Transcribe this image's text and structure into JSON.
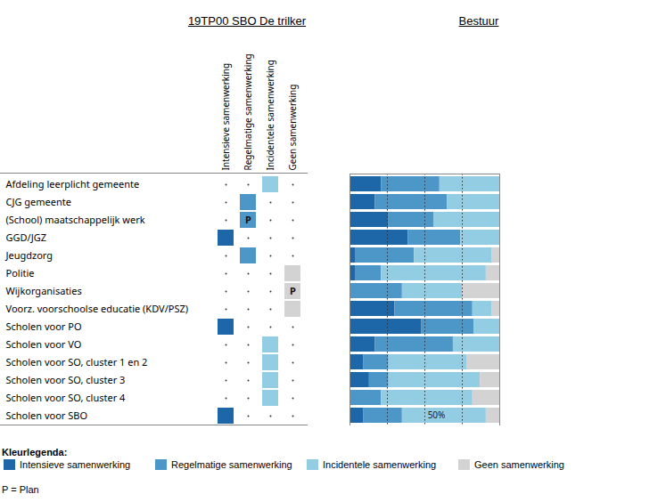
{
  "chart_data": [
    {
      "type": "matrix",
      "title": "19TP00 SBO De trilker",
      "columns": [
        "Intensieve samenwerking",
        "Regelmatige samenwerking",
        "Incidentele samenwerking",
        "Geen samenwerking"
      ],
      "categories": [
        "Afdeling leerplicht gemeente",
        "CJG gemeente",
        "(School) maatschappelijk werk",
        "GGD/JGZ",
        "Jeugdzorg",
        "Politie",
        "Wijkorganisaties",
        "Voorz. voorschoolse educatie (KDV/PSZ)",
        "Scholen voor PO",
        "Scholen voor VO",
        "Scholen voor SO, cluster 1 en 2",
        "Scholen voor SO, cluster 3",
        "Scholen voor SO, cluster 4",
        "Scholen voor SBO"
      ],
      "levels": [
        "Incidentele samenwerking",
        "Regelmatige samenwerking",
        "Regelmatige samenwerking",
        "Intensieve samenwerking",
        "Regelmatige samenwerking",
        "Geen samenwerking",
        "Geen samenwerking",
        "Geen samenwerking",
        "Intensieve samenwerking",
        "Incidentele samenwerking",
        "Incidentele samenwerking",
        "Incidentele samenwerking",
        "Incidentele samenwerking",
        "Intensieve samenwerking"
      ],
      "plans": [
        false,
        false,
        true,
        false,
        false,
        false,
        true,
        false,
        false,
        false,
        false,
        false,
        false,
        false
      ],
      "plan_label": "P"
    },
    {
      "type": "bar",
      "title": "Bestuur",
      "orientation": "horizontal",
      "stacked": true,
      "categories": [
        "Afdeling leerplicht gemeente",
        "CJG gemeente",
        "(School) maatschappelijk werk",
        "GGD/JGZ",
        "Jeugdzorg",
        "Politie",
        "Wijkorganisaties",
        "Voorz. voorschoolse educatie (KDV/PSZ)",
        "Scholen voor PO",
        "Scholen voor VO",
        "Scholen voor SO, cluster 1 en 2",
        "Scholen voor SO, cluster 3",
        "Scholen voor SO, cluster 4",
        "Scholen voor SBO"
      ],
      "series": [
        {
          "name": "Intensieve samenwerking",
          "color": "#1d67a8",
          "values": [
            21,
            17,
            26,
            39,
            4,
            4,
            0,
            30,
            48,
            17,
            9,
            13,
            0,
            9
          ]
        },
        {
          "name": "Regelmatige samenwerking",
          "color": "#4d96c8",
          "values": [
            39,
            48,
            30,
            35,
            39,
            17,
            35,
            52,
            35,
            52,
            17,
            13,
            21,
            26
          ]
        },
        {
          "name": "Incidentele samenwerking",
          "color": "#92cde3",
          "values": [
            40,
            35,
            44,
            26,
            52,
            70,
            40,
            13,
            17,
            31,
            52,
            61,
            61,
            56
          ]
        },
        {
          "name": "Geen samenwerking",
          "color": "#d3d3d3",
          "values": [
            0,
            0,
            0,
            0,
            5,
            9,
            25,
            5,
            0,
            0,
            22,
            13,
            18,
            9
          ]
        }
      ],
      "xlim": [
        0,
        100
      ],
      "xticks": [
        25,
        50,
        75
      ],
      "tick_labels": false,
      "grid": true,
      "annotations": [
        {
          "text": "50%",
          "x": 50,
          "category": "Scholen voor SBO"
        }
      ],
      "legend": "bottom",
      "legend_title": "Kleurlegenda:",
      "note": "P = Plan"
    }
  ]
}
